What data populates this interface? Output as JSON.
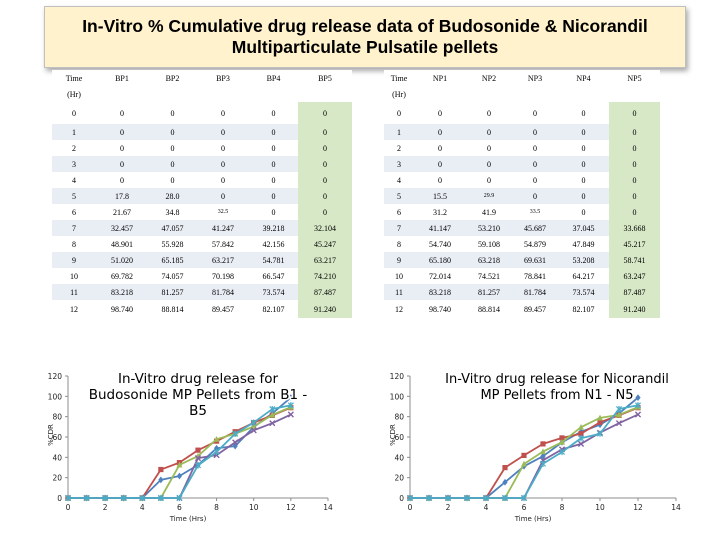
{
  "title": {
    "line1": "In-Vitro % Cumulative drug release data of Budosonide & Nicorandil",
    "line2": "Multiparticulate Pulsatile pellets"
  },
  "table_budesonide": {
    "headers": [
      "Time",
      "BP1",
      "BP2",
      "BP3",
      "BP4",
      "BP5"
    ],
    "unit": "(Hr)",
    "rows": [
      [
        "0",
        "0",
        "0",
        "0",
        "0",
        "0"
      ],
      [
        "1",
        "0",
        "0",
        "0",
        "0",
        "0"
      ],
      [
        "2",
        "0",
        "0",
        "0",
        "0",
        "0"
      ],
      [
        "3",
        "0",
        "0",
        "0",
        "0",
        "0"
      ],
      [
        "4",
        "0",
        "0",
        "0",
        "0",
        "0"
      ],
      [
        "5",
        "17.8",
        "28.0",
        "0",
        "0",
        "0"
      ],
      [
        "6",
        "21.67",
        "34.8",
        "32.5",
        "0",
        "0"
      ],
      [
        "7",
        "32.457",
        "47.057",
        "41.247",
        "39.218",
        "32.104"
      ],
      [
        "8",
        "48.901",
        "55.928",
        "57.842",
        "42.156",
        "45.247"
      ],
      [
        "9",
        "51.020",
        "65.185",
        "63.217",
        "54.781",
        "63.217"
      ],
      [
        "10",
        "69.782",
        "74.057",
        "70.198",
        "66.547",
        "74.210"
      ],
      [
        "11",
        "83.218",
        "81.257",
        "81.784",
        "73.574",
        "87.487"
      ],
      [
        "12",
        "98.740",
        "88.814",
        "89.457",
        "82.107",
        "91.240"
      ]
    ]
  },
  "table_nicorandil": {
    "headers": [
      "Time",
      "NP1",
      "NP2",
      "NP3",
      "NP4",
      "NP5"
    ],
    "unit": "(Hr)",
    "rows": [
      [
        "0",
        "0",
        "0",
        "0",
        "0",
        "0"
      ],
      [
        "1",
        "0",
        "0",
        "0",
        "0",
        "0"
      ],
      [
        "2",
        "0",
        "0",
        "0",
        "0",
        "0"
      ],
      [
        "3",
        "0",
        "0",
        "0",
        "0",
        "0"
      ],
      [
        "4",
        "0",
        "0",
        "0",
        "0",
        "0"
      ],
      [
        "5",
        "15.5",
        "29.9",
        "0",
        "0",
        "0"
      ],
      [
        "6",
        "31.2",
        "41.9",
        "33.5",
        "0",
        "0"
      ],
      [
        "7",
        "41.147",
        "53.210",
        "45.687",
        "37.045",
        "33.668"
      ],
      [
        "8",
        "54.740",
        "59.108",
        "54.879",
        "47.849",
        "45.217"
      ],
      [
        "9",
        "65.180",
        "63.218",
        "69.631",
        "53.208",
        "58.741"
      ],
      [
        "10",
        "72.014",
        "74.521",
        "78.841",
        "64.217",
        "63.247"
      ],
      [
        "11",
        "83.218",
        "81.257",
        "81.784",
        "73.574",
        "87.487"
      ],
      [
        "12",
        "98.740",
        "88.814",
        "89.457",
        "82.107",
        "91.240"
      ]
    ]
  },
  "chart_data": [
    {
      "type": "line",
      "title_lines": [
        "In-Vitro drug release for",
        "Budosonide MP Pellets from B1 -",
        "B5"
      ],
      "xlabel": "Time (Hrs)",
      "ylabel": "%CDR",
      "xlim": [
        0,
        14
      ],
      "ylim": [
        0,
        120
      ],
      "xticks": [
        0,
        2,
        4,
        6,
        8,
        10,
        12,
        14
      ],
      "yticks": [
        0,
        20,
        40,
        60,
        80,
        100,
        120
      ],
      "grid": false,
      "x": [
        0,
        1,
        2,
        3,
        4,
        5,
        6,
        7,
        8,
        9,
        10,
        11,
        12
      ],
      "series": [
        {
          "values": [
            0,
            0,
            0,
            0,
            0,
            17.8,
            21.67,
            32.457,
            48.901,
            51.02,
            69.782,
            83.218,
            98.74
          ],
          "color": "#4f81bd",
          "marker": "diamond"
        },
        {
          "values": [
            0,
            0,
            0,
            0,
            0,
            28.0,
            34.8,
            47.057,
            55.928,
            65.185,
            74.057,
            81.257,
            88.814
          ],
          "color": "#c0504d",
          "marker": "square"
        },
        {
          "values": [
            0,
            0,
            0,
            0,
            0,
            0,
            32.5,
            41.247,
            57.842,
            63.217,
            70.198,
            81.784,
            89.457
          ],
          "color": "#9bbb59",
          "marker": "triangle"
        },
        {
          "values": [
            0,
            0,
            0,
            0,
            0,
            0,
            0,
            39.218,
            42.156,
            54.781,
            66.547,
            73.574,
            82.107
          ],
          "color": "#8064a2",
          "marker": "x"
        },
        {
          "values": [
            0,
            0,
            0,
            0,
            0,
            0,
            0,
            32.104,
            45.247,
            63.217,
            74.21,
            87.487,
            91.24
          ],
          "color": "#4bacc6",
          "marker": "star"
        }
      ]
    },
    {
      "type": "line",
      "title_lines": [
        "In-Vitro drug release for Nicorandil",
        "MP Pellets from N1 - N5"
      ],
      "xlabel": "Time (Hrs)",
      "ylabel": "%CDR",
      "xlim": [
        0,
        14
      ],
      "ylim": [
        0,
        120
      ],
      "xticks": [
        0,
        2,
        4,
        6,
        8,
        10,
        12,
        14
      ],
      "yticks": [
        0,
        20,
        40,
        60,
        80,
        100,
        120
      ],
      "grid": false,
      "x": [
        0,
        1,
        2,
        3,
        4,
        5,
        6,
        7,
        8,
        9,
        10,
        11,
        12
      ],
      "series": [
        {
          "values": [
            0,
            0,
            0,
            0,
            0,
            15.5,
            31.2,
            41.147,
            54.74,
            65.18,
            72.014,
            83.218,
            98.74
          ],
          "color": "#4f81bd",
          "marker": "diamond"
        },
        {
          "values": [
            0,
            0,
            0,
            0,
            0,
            29.9,
            41.9,
            53.21,
            59.108,
            63.218,
            74.521,
            81.257,
            88.814
          ],
          "color": "#c0504d",
          "marker": "square"
        },
        {
          "values": [
            0,
            0,
            0,
            0,
            0,
            0,
            33.5,
            45.687,
            54.879,
            69.631,
            78.841,
            81.784,
            89.457
          ],
          "color": "#9bbb59",
          "marker": "triangle"
        },
        {
          "values": [
            0,
            0,
            0,
            0,
            0,
            0,
            0,
            37.045,
            47.849,
            53.208,
            64.217,
            73.574,
            82.107
          ],
          "color": "#8064a2",
          "marker": "x"
        },
        {
          "values": [
            0,
            0,
            0,
            0,
            0,
            0,
            0,
            33.668,
            45.217,
            58.741,
            63.247,
            87.487,
            91.24
          ],
          "color": "#4bacc6",
          "marker": "star"
        }
      ]
    }
  ]
}
